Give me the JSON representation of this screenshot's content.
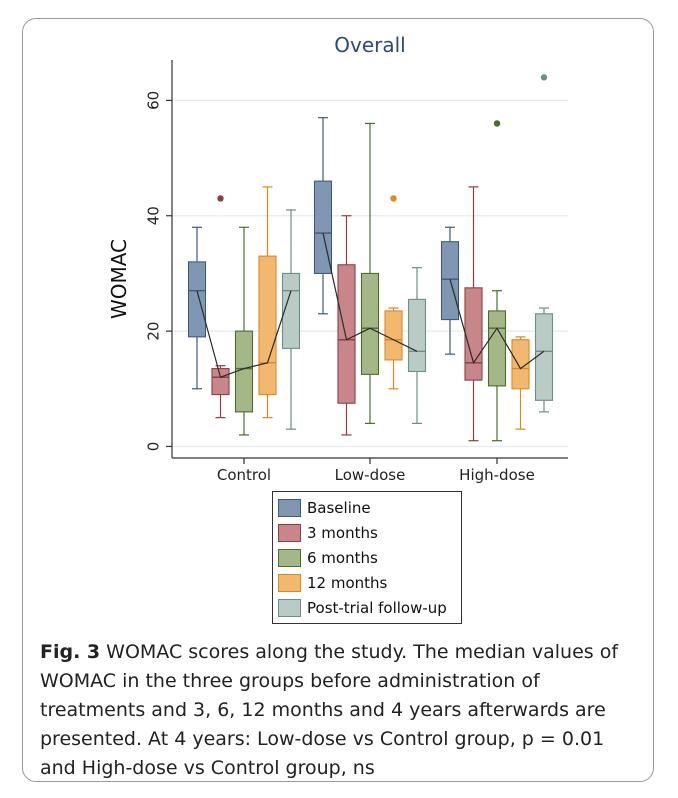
{
  "chart_data": {
    "type": "box",
    "title": "Overall",
    "ylabel": "WOMAC",
    "xlabel": "",
    "ylim": [
      -2,
      67
    ],
    "yticks": [
      0,
      20,
      40,
      60
    ],
    "grid": true,
    "legend_position": "bottom",
    "categories": [
      "Control",
      "Low-dose",
      "High-dose"
    ],
    "series": [
      {
        "name": "Baseline",
        "color": "#7f97b2",
        "stroke": "#3f5a7a",
        "boxes": [
          {
            "min": 10,
            "q1": 19,
            "median": 27,
            "q3": 32,
            "max": 38,
            "outliers": []
          },
          {
            "min": 23,
            "q1": 30,
            "median": 37,
            "q3": 46,
            "max": 57,
            "outliers": []
          },
          {
            "min": 16,
            "q1": 22,
            "median": 29,
            "q3": 35.5,
            "max": 38,
            "outliers": []
          }
        ]
      },
      {
        "name": "3 months",
        "color": "#c9868a",
        "stroke": "#8c3f45",
        "boxes": [
          {
            "min": 5,
            "q1": 9,
            "median": 12,
            "q3": 13.5,
            "max": 14,
            "outliers": [
              43
            ]
          },
          {
            "min": 2,
            "q1": 7.5,
            "median": 18.5,
            "q3": 31.5,
            "max": 40,
            "outliers": []
          },
          {
            "min": 1,
            "q1": 11.5,
            "median": 14.5,
            "q3": 27.5,
            "max": 45,
            "outliers": []
          }
        ]
      },
      {
        "name": "6 months",
        "color": "#a3b886",
        "stroke": "#4d6b2f",
        "boxes": [
          {
            "min": 2,
            "q1": 6,
            "median": 13.5,
            "q3": 20,
            "max": 38,
            "outliers": []
          },
          {
            "min": 4,
            "q1": 12.5,
            "median": 20.5,
            "q3": 30,
            "max": 56,
            "outliers": []
          },
          {
            "min": 1,
            "q1": 10.5,
            "median": 20.5,
            "q3": 23.5,
            "max": 27,
            "outliers": [
              56
            ]
          }
        ]
      },
      {
        "name": "12 months",
        "color": "#f3b870",
        "stroke": "#d98a22",
        "boxes": [
          {
            "min": 5,
            "q1": 9,
            "median": 14.5,
            "q3": 33,
            "max": 45,
            "outliers": []
          },
          {
            "min": 10,
            "q1": 15,
            "median": 18.5,
            "q3": 23.5,
            "max": 24,
            "outliers": [
              43
            ]
          },
          {
            "min": 3,
            "q1": 10,
            "median": 13.5,
            "q3": 18.5,
            "max": 19,
            "outliers": []
          }
        ]
      },
      {
        "name": "Post-trial follow-up",
        "color": "#b8cbc5",
        "stroke": "#6d8f86",
        "boxes": [
          {
            "min": 3,
            "q1": 17,
            "median": 27,
            "q3": 30,
            "max": 41,
            "outliers": []
          },
          {
            "min": 4,
            "q1": 13,
            "median": 16.5,
            "q3": 25.5,
            "max": 31,
            "outliers": []
          },
          {
            "min": 6,
            "q1": 8,
            "median": 16.5,
            "q3": 23,
            "max": 24,
            "outliers": [
              64
            ]
          }
        ]
      }
    ]
  },
  "caption": {
    "label": "Fig. 3",
    "text": "WOMAC scores along the study. The median values of WOMAC in the three groups before administration of treatments and 3, 6, 12 months and 4 years afterwards are presented. At 4 years: Low-dose vs Control group, p = 0.01 and High-dose vs Control group, ns"
  }
}
